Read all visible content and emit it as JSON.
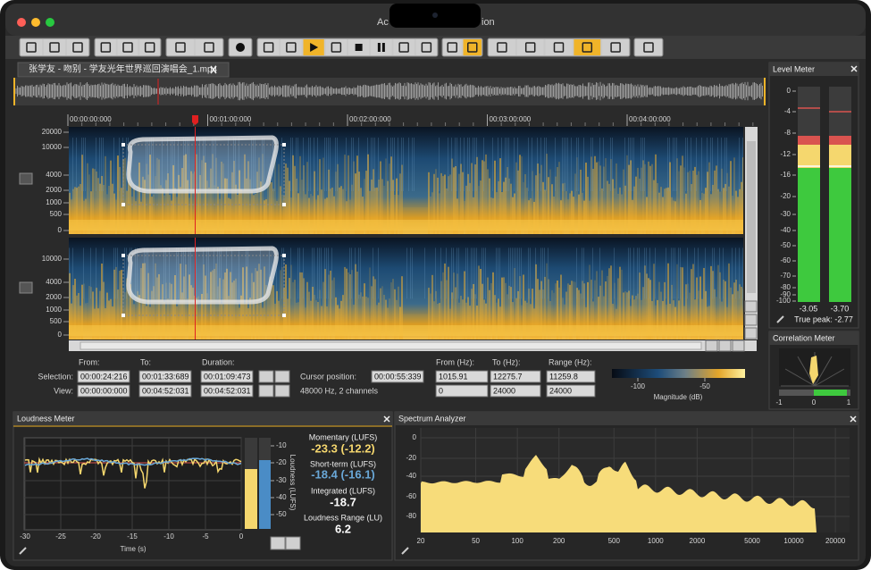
{
  "window": {
    "title_left": "Ac",
    "title_right": "ion"
  },
  "tab": {
    "title": "张学友 - 吻别 - 学友光年世界巡回演唱会_1.mp4"
  },
  "timeline": {
    "labels": [
      "00:00:00:000",
      "00:01:00:000",
      "00:02:00:000",
      "00:03:00:000",
      "00:04:00:000"
    ]
  },
  "spectrogram": {
    "channel1_labels": [
      20000,
      10000,
      4000,
      2000,
      1000,
      500,
      0
    ],
    "channel2_labels": [
      10000,
      4000,
      2000,
      1000,
      500,
      0
    ]
  },
  "selection_panel": {
    "from_header": "From:",
    "to_header": "To:",
    "duration_header": "Duration:",
    "selection_label": "Selection:",
    "view_label": "View:",
    "selection": [
      "00:00:24:216",
      "00:01:33:689",
      "00:01:09:473"
    ],
    "view": [
      "00:00:00:000",
      "00:04:52:031",
      "00:04:52:031"
    ],
    "cursor_label": "Cursor position:",
    "cursor": "00:00:55:339",
    "format": "48000 Hz, 2 channels",
    "from_hz_header": "From (Hz):",
    "to_hz_header": "To (Hz):",
    "range_hz_header": "Range (Hz):",
    "hz_selection": [
      "1015.91",
      "12275.7",
      "11259.8"
    ],
    "hz_view": [
      "0",
      "24000",
      "24000"
    ],
    "colorbar_ticks": [
      -100,
      -50
    ],
    "colorbar_label": "Magnitude (dB)"
  },
  "level_meter": {
    "title": "Level Meter",
    "scale": [
      0,
      -4,
      -8,
      -12,
      -16,
      -20,
      -30,
      -40,
      -50,
      -60,
      -70,
      -80,
      -90,
      -100
    ],
    "peaks": [
      "-3.05",
      "-3.70"
    ],
    "true_peak": "True peak: -2.77"
  },
  "correlation_meter": {
    "title": "Correlation Meter",
    "scale": [
      -1,
      0,
      1
    ]
  },
  "loudness_meter": {
    "title": "Loudness Meter",
    "x_ticks": [
      -30,
      -25,
      -20,
      -15,
      -10,
      -5,
      0
    ],
    "x_label": "Time (s)",
    "scale": [
      -10,
      -20,
      -30,
      -40,
      -50
    ],
    "scale_label": "Loudness (LUFS)",
    "readouts": [
      {
        "label": "Momentary (LUFS)",
        "value": "-23.3 (-12.2)"
      },
      {
        "label": "Short-term (LUFS)",
        "value": "-18.4 (-16.1)"
      },
      {
        "label": "Integrated (LUFS)",
        "value": "-18.7"
      },
      {
        "label": "Loudness Range (LU)",
        "value": "6.2"
      }
    ]
  },
  "spectrum_analyzer": {
    "title": "Spectrum Analyzer",
    "y_ticks": [
      0,
      -20,
      -40,
      -60,
      -80
    ],
    "x_ticks": [
      20,
      50,
      100,
      200,
      500,
      1000,
      2000,
      5000,
      10000,
      20000
    ]
  }
}
